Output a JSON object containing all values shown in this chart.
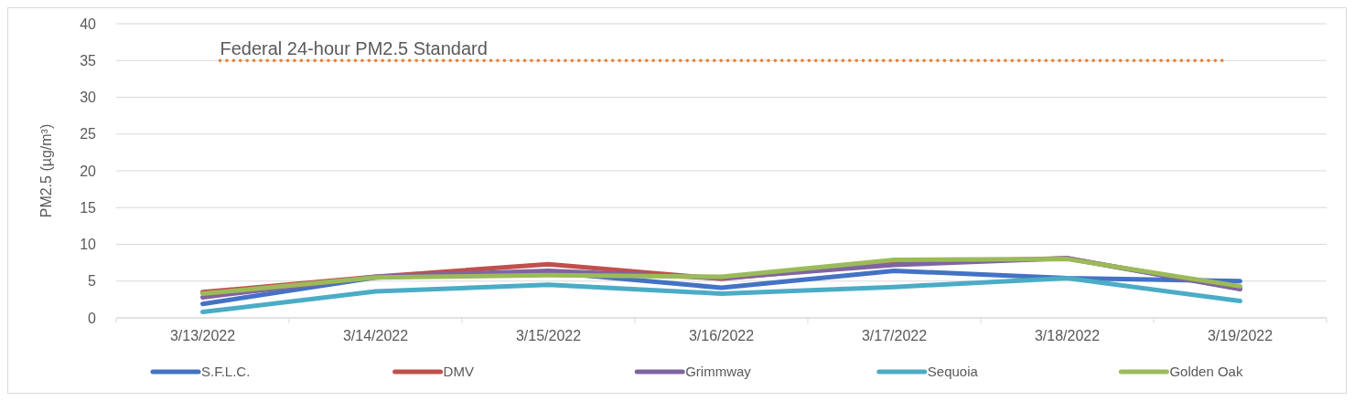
{
  "chart_data": {
    "type": "line",
    "ylabel": "PM2.5 (µg/m³)",
    "categories": [
      "3/13/2022",
      "3/14/2022",
      "3/15/2022",
      "3/16/2022",
      "3/17/2022",
      "3/18/2022",
      "3/19/2022"
    ],
    "ylim": [
      0,
      40
    ],
    "yticks": [
      0,
      5,
      10,
      15,
      20,
      25,
      30,
      35,
      40
    ],
    "grid": "y",
    "legend": "bottom",
    "marker": "none",
    "line_style": "solid",
    "series": [
      {
        "name": "S.F.L.C.",
        "color": "#4472c4",
        "values": [
          1.9,
          5.5,
          6.2,
          4.1,
          6.4,
          5.4,
          5.0
        ]
      },
      {
        "name": "DMV",
        "color": "#c0504d",
        "values": [
          3.5,
          5.6,
          7.3,
          5.3,
          7.5,
          8.1,
          4.0
        ]
      },
      {
        "name": "Grimmway",
        "color": "#8064a2",
        "values": [
          2.8,
          5.6,
          6.4,
          5.4,
          7.2,
          8.1,
          3.9
        ]
      },
      {
        "name": "Sequoia",
        "color": "#4bacc6",
        "values": [
          0.8,
          3.6,
          4.5,
          3.3,
          4.2,
          5.4,
          2.3
        ]
      },
      {
        "name": "Golden Oak",
        "color": "#9bbb59",
        "values": [
          3.3,
          5.5,
          5.8,
          5.6,
          7.9,
          8.0,
          4.3
        ]
      }
    ],
    "ref_lines": [
      {
        "axis": "y",
        "value": 35,
        "label": "Federal 24-hour PM2.5 Standard",
        "color": "#ed7d31",
        "line_style": "dotted"
      }
    ]
  }
}
